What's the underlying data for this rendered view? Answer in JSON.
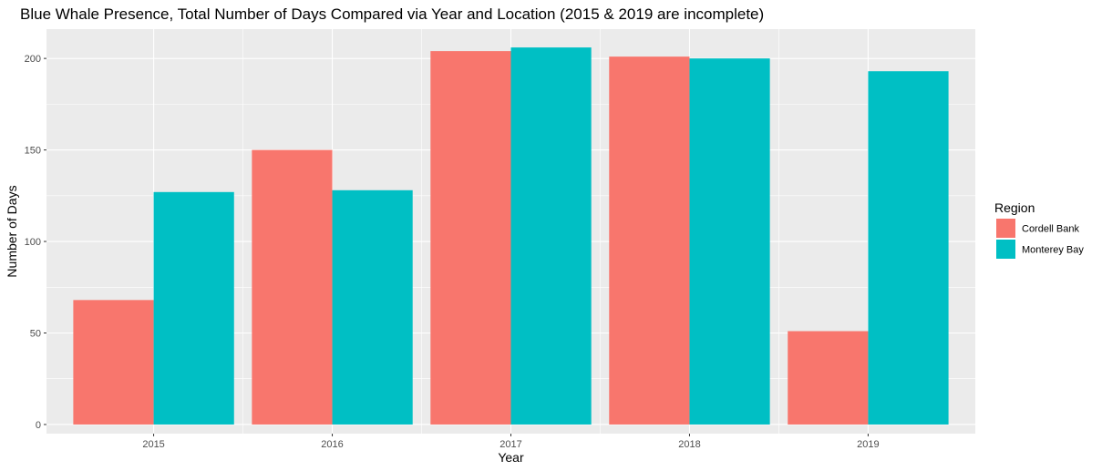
{
  "chart_data": {
    "type": "bar",
    "title": "Blue Whale Presence, Total Number of Days Compared via Year and Location (2015 & 2019 are incomplete)",
    "xlabel": "Year",
    "ylabel": "Number of Days",
    "categories": [
      "2015",
      "2016",
      "2017",
      "2018",
      "2019"
    ],
    "series": [
      {
        "name": "Cordell Bank",
        "values": [
          68,
          150,
          204,
          201,
          51
        ]
      },
      {
        "name": "Monterey Bay",
        "values": [
          127,
          128,
          206,
          200,
          193
        ]
      }
    ],
    "ylim": [
      -5,
      216
    ],
    "yticks": [
      0,
      50,
      100,
      150,
      200
    ],
    "grid": true,
    "legend": {
      "title": "Region",
      "position": "right"
    },
    "colors": {
      "Cordell Bank": "#F8766D",
      "Monterey Bay": "#00BFC4",
      "panel_background": "#EBEBEB",
      "grid": "#FFFFFF"
    }
  }
}
